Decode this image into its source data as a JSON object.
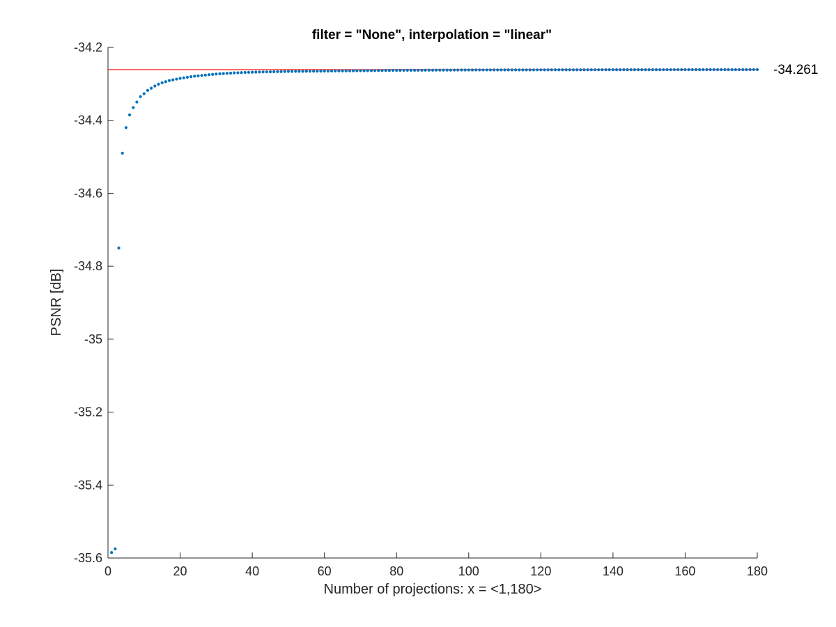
{
  "chart_data": {
    "type": "scatter",
    "title": "filter = \"None\", interpolation = \"linear\"",
    "xlabel": "Number of projections: x = <1,180>",
    "ylabel": "PSNR [dB]",
    "xlim": [
      0,
      180
    ],
    "ylim": [
      -35.6,
      -34.2
    ],
    "xticks": [
      0,
      20,
      40,
      60,
      80,
      100,
      120,
      140,
      160,
      180
    ],
    "xtick_labels": [
      "0",
      "20",
      "40",
      "60",
      "80",
      "100",
      "120",
      "140",
      "160",
      "180"
    ],
    "yticks": [
      -34.2,
      -34.4,
      -34.6,
      -34.8,
      -35,
      -35.2,
      -35.4,
      -35.6
    ],
    "ytick_labels": [
      "-34.2",
      "-34.4",
      "-34.6",
      "-34.8",
      "-35",
      "-35.2",
      "-35.4",
      "-35.6"
    ],
    "grid": false,
    "reference_line": {
      "y": -34.261,
      "label": "-34.261",
      "color": "#ff0000"
    },
    "series": [
      {
        "color": "#0072bd",
        "x": [
          1,
          2,
          3,
          4,
          5,
          6,
          7,
          8,
          9,
          10,
          11,
          12,
          13,
          14,
          15,
          16,
          17,
          18,
          19,
          20,
          22,
          24,
          26,
          28,
          30,
          35,
          40,
          45,
          50,
          60,
          70,
          80,
          90,
          100,
          120,
          140,
          160,
          180
        ],
        "y": [
          -35.585,
          -35.575,
          -34.75,
          -34.49,
          -34.42,
          -34.385,
          -34.365,
          -34.35,
          -34.335,
          -34.327,
          -34.318,
          -34.312,
          -34.306,
          -34.301,
          -34.297,
          -34.294,
          -34.291,
          -34.289,
          -34.287,
          -34.285,
          -34.282,
          -34.279,
          -34.277,
          -34.275,
          -34.273,
          -34.27,
          -34.268,
          -34.267,
          -34.266,
          -34.265,
          -34.264,
          -34.263,
          -34.2625,
          -34.262,
          -34.2617,
          -34.2614,
          -34.2612,
          -34.261
        ]
      }
    ]
  }
}
